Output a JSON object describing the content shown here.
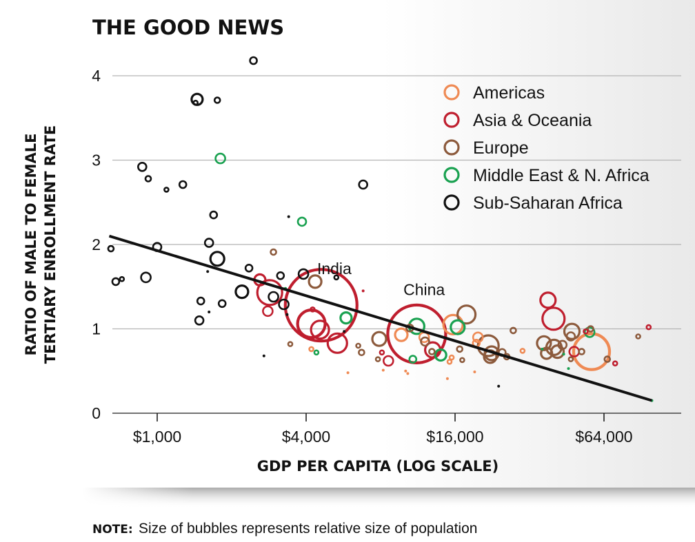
{
  "chart_data": {
    "type": "scatter",
    "title": "THE GOOD NEWS",
    "xlabel": "GDP PER CAPITA (LOG SCALE)",
    "ylabel_lines": [
      "RATIO OF MALE TO FEMALE",
      "TERTIARY ENROLLMENT RATE"
    ],
    "x_scale": "log2",
    "xlim": [
      600,
      110000
    ],
    "ylim": [
      0,
      4.2
    ],
    "x_ticks": [
      {
        "value": 1000,
        "label": "$1,000"
      },
      {
        "value": 4000,
        "label": "$4,000"
      },
      {
        "value": 16000,
        "label": "$16,000"
      },
      {
        "value": 64000,
        "label": "$64,000"
      }
    ],
    "y_ticks": [
      {
        "value": 0,
        "label": "0"
      },
      {
        "value": 1,
        "label": "1"
      },
      {
        "value": 2,
        "label": "2"
      },
      {
        "value": 3,
        "label": "3"
      },
      {
        "value": 4,
        "label": "4"
      }
    ],
    "legend": [
      {
        "key": "am",
        "label": "Americas",
        "color": "#ef8a54"
      },
      {
        "key": "as",
        "label": "Asia & Oceania",
        "color": "#bf1e2e"
      },
      {
        "key": "eu",
        "label": "Europe",
        "color": "#8c5a3c"
      },
      {
        "key": "me",
        "label": "Middle East & N. Africa",
        "color": "#19a150"
      },
      {
        "key": "af",
        "label": "Sub-Saharan Africa",
        "color": "#111111"
      }
    ],
    "trendline": {
      "x": [
        640,
        100000
      ],
      "y": [
        2.1,
        0.15
      ]
    },
    "annotations": [
      {
        "text": "India",
        "x": 5200,
        "y": 1.65
      },
      {
        "text": "China",
        "x": 12000,
        "y": 1.4
      }
    ],
    "size_note_label": "NOTE:",
    "size_note": "Size of bubbles represents relative size of population",
    "series": [
      {
        "name": "Sub-Saharan Africa",
        "key": "af",
        "points": [
          {
            "x": 2450,
            "y": 4.18,
            "size": 5
          },
          {
            "x": 1450,
            "y": 3.72,
            "size": 8
          },
          {
            "x": 1430,
            "y": 3.68,
            "size": 3
          },
          {
            "x": 1750,
            "y": 3.71,
            "size": 4
          },
          {
            "x": 870,
            "y": 2.92,
            "size": 6
          },
          {
            "x": 920,
            "y": 2.78,
            "size": 4
          },
          {
            "x": 1270,
            "y": 2.71,
            "size": 5
          },
          {
            "x": 1090,
            "y": 2.65,
            "size": 3
          },
          {
            "x": 1690,
            "y": 2.35,
            "size": 5
          },
          {
            "x": 3400,
            "y": 2.33,
            "size": 2
          },
          {
            "x": 6800,
            "y": 2.71,
            "size": 6
          },
          {
            "x": 650,
            "y": 1.95,
            "size": 4
          },
          {
            "x": 1000,
            "y": 1.97,
            "size": 6
          },
          {
            "x": 1620,
            "y": 2.02,
            "size": 6
          },
          {
            "x": 1750,
            "y": 1.83,
            "size": 10
          },
          {
            "x": 2350,
            "y": 1.72,
            "size": 5
          },
          {
            "x": 3150,
            "y": 1.63,
            "size": 5
          },
          {
            "x": 3900,
            "y": 1.65,
            "size": 7
          },
          {
            "x": 680,
            "y": 1.56,
            "size": 5
          },
          {
            "x": 720,
            "y": 1.59,
            "size": 3
          },
          {
            "x": 900,
            "y": 1.61,
            "size": 7
          },
          {
            "x": 1600,
            "y": 1.68,
            "size": 2
          },
          {
            "x": 2200,
            "y": 1.44,
            "size": 9
          },
          {
            "x": 2950,
            "y": 1.38,
            "size": 7
          },
          {
            "x": 1500,
            "y": 1.33,
            "size": 5
          },
          {
            "x": 1830,
            "y": 1.3,
            "size": 5
          },
          {
            "x": 3250,
            "y": 1.29,
            "size": 7
          },
          {
            "x": 3350,
            "y": 1.17,
            "size": 2
          },
          {
            "x": 1620,
            "y": 1.2,
            "size": 2
          },
          {
            "x": 1480,
            "y": 1.1,
            "size": 6
          },
          {
            "x": 2700,
            "y": 0.68,
            "size": 2
          },
          {
            "x": 5700,
            "y": 0.97,
            "size": 2
          },
          {
            "x": 5300,
            "y": 1.61,
            "size": 3
          },
          {
            "x": 24000,
            "y": 0.32,
            "size": 2
          }
        ]
      },
      {
        "name": "Middle East & N. Africa",
        "key": "me",
        "points": [
          {
            "x": 1800,
            "y": 3.02,
            "size": 7
          },
          {
            "x": 3850,
            "y": 2.27,
            "size": 6
          },
          {
            "x": 3300,
            "y": 1.48,
            "size": 2
          },
          {
            "x": 5800,
            "y": 1.13,
            "size": 8
          },
          {
            "x": 11200,
            "y": 1.03,
            "size": 11
          },
          {
            "x": 16400,
            "y": 1.02,
            "size": 10
          },
          {
            "x": 56000,
            "y": 0.96,
            "size": 7
          },
          {
            "x": 14000,
            "y": 0.69,
            "size": 8
          },
          {
            "x": 10800,
            "y": 0.64,
            "size": 5
          },
          {
            "x": 4400,
            "y": 0.72,
            "size": 3
          },
          {
            "x": 46000,
            "y": 0.53,
            "size": 2
          },
          {
            "x": 44000,
            "y": 0.7,
            "size": 2
          },
          {
            "x": 36000,
            "y": 0.76,
            "size": 2
          },
          {
            "x": 100000,
            "y": 0.15,
            "size": 2
          }
        ]
      },
      {
        "name": "Asia & Oceania",
        "key": "as",
        "points": [
          {
            "x": 4600,
            "y": 1.28,
            "size": 52
          },
          {
            "x": 11200,
            "y": 0.94,
            "size": 42
          },
          {
            "x": 4200,
            "y": 1.06,
            "size": 20
          },
          {
            "x": 4550,
            "y": 0.99,
            "size": 13
          },
          {
            "x": 5350,
            "y": 0.83,
            "size": 14
          },
          {
            "x": 2850,
            "y": 1.43,
            "size": 18
          },
          {
            "x": 2600,
            "y": 1.58,
            "size": 8
          },
          {
            "x": 2800,
            "y": 1.21,
            "size": 7
          },
          {
            "x": 4250,
            "y": 1.23,
            "size": 3
          },
          {
            "x": 6800,
            "y": 1.45,
            "size": 2
          },
          {
            "x": 38000,
            "y": 1.34,
            "size": 11
          },
          {
            "x": 40000,
            "y": 1.12,
            "size": 16
          },
          {
            "x": 13000,
            "y": 0.75,
            "size": 11
          },
          {
            "x": 8600,
            "y": 0.62,
            "size": 7
          },
          {
            "x": 8100,
            "y": 0.72,
            "size": 3
          },
          {
            "x": 48500,
            "y": 0.73,
            "size": 7
          },
          {
            "x": 54000,
            "y": 0.97,
            "size": 3
          },
          {
            "x": 71000,
            "y": 0.59,
            "size": 3
          },
          {
            "x": 97000,
            "y": 1.02,
            "size": 3
          }
        ]
      },
      {
        "name": "Americas",
        "key": "am",
        "points": [
          {
            "x": 57000,
            "y": 0.73,
            "size": 26
          },
          {
            "x": 15700,
            "y": 1.05,
            "size": 14
          },
          {
            "x": 9700,
            "y": 0.93,
            "size": 9
          },
          {
            "x": 12000,
            "y": 0.9,
            "size": 7
          },
          {
            "x": 19800,
            "y": 0.9,
            "size": 7
          },
          {
            "x": 19500,
            "y": 0.83,
            "size": 5
          },
          {
            "x": 15500,
            "y": 0.66,
            "size": 3
          },
          {
            "x": 15200,
            "y": 0.61,
            "size": 3
          },
          {
            "x": 10100,
            "y": 0.5,
            "size": 2
          },
          {
            "x": 10300,
            "y": 0.47,
            "size": 2
          },
          {
            "x": 5900,
            "y": 0.48,
            "size": 2
          },
          {
            "x": 8200,
            "y": 0.51,
            "size": 2
          },
          {
            "x": 4200,
            "y": 0.76,
            "size": 3
          },
          {
            "x": 19200,
            "y": 0.49,
            "size": 2
          },
          {
            "x": 14900,
            "y": 0.41,
            "size": 2
          },
          {
            "x": 30000,
            "y": 0.74,
            "size": 3
          }
        ]
      },
      {
        "name": "Europe",
        "key": "eu",
        "points": [
          {
            "x": 4350,
            "y": 1.56,
            "size": 9
          },
          {
            "x": 2950,
            "y": 1.91,
            "size": 4
          },
          {
            "x": 3450,
            "y": 0.82,
            "size": 3
          },
          {
            "x": 17800,
            "y": 1.17,
            "size": 13
          },
          {
            "x": 7900,
            "y": 0.88,
            "size": 10
          },
          {
            "x": 10500,
            "y": 1.01,
            "size": 5
          },
          {
            "x": 12100,
            "y": 0.85,
            "size": 6
          },
          {
            "x": 12900,
            "y": 0.73,
            "size": 4
          },
          {
            "x": 16700,
            "y": 0.76,
            "size": 4
          },
          {
            "x": 21800,
            "y": 0.8,
            "size": 15
          },
          {
            "x": 22500,
            "y": 0.71,
            "size": 10
          },
          {
            "x": 22200,
            "y": 0.67,
            "size": 9
          },
          {
            "x": 24800,
            "y": 0.72,
            "size": 5
          },
          {
            "x": 25900,
            "y": 0.67,
            "size": 4
          },
          {
            "x": 27500,
            "y": 0.98,
            "size": 4
          },
          {
            "x": 36600,
            "y": 0.83,
            "size": 10
          },
          {
            "x": 37500,
            "y": 0.71,
            "size": 8
          },
          {
            "x": 40200,
            "y": 0.78,
            "size": 11
          },
          {
            "x": 41500,
            "y": 0.73,
            "size": 9
          },
          {
            "x": 43500,
            "y": 0.81,
            "size": 6
          },
          {
            "x": 47500,
            "y": 0.97,
            "size": 11
          },
          {
            "x": 47000,
            "y": 0.91,
            "size": 6
          },
          {
            "x": 52000,
            "y": 0.73,
            "size": 4
          },
          {
            "x": 56500,
            "y": 1.0,
            "size": 4
          },
          {
            "x": 66000,
            "y": 0.64,
            "size": 4
          },
          {
            "x": 88000,
            "y": 0.91,
            "size": 3
          },
          {
            "x": 6500,
            "y": 0.8,
            "size": 3
          },
          {
            "x": 7800,
            "y": 0.64,
            "size": 3
          },
          {
            "x": 6700,
            "y": 0.72,
            "size": 4
          },
          {
            "x": 17100,
            "y": 0.63,
            "size": 3
          },
          {
            "x": 47000,
            "y": 0.64,
            "size": 3
          }
        ]
      }
    ]
  }
}
